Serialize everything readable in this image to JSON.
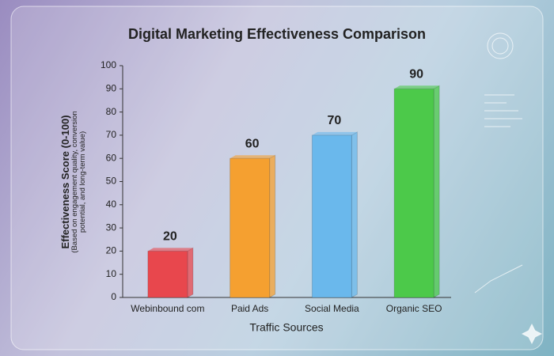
{
  "chart_data": {
    "type": "bar",
    "title": "Digital Marketing Effectiveness Comparison",
    "y_label": "Effectiveness Score (0-100)",
    "y_sublabel": "(Based on engagement quality, conversion potential, and long-term value)",
    "x_label": "Traffic Sources",
    "categories": [
      "Webinbound com",
      "Paid Ads",
      "Social Media",
      "Organic SEO"
    ],
    "values": [
      20,
      60,
      70,
      90
    ],
    "colors": [
      "#e8474d",
      "#f5a030",
      "#6ab8ec",
      "#4cc94a"
    ],
    "ylim": [
      0,
      100
    ],
    "yticks": [
      0,
      10,
      20,
      30,
      40,
      50,
      60,
      70,
      80,
      90,
      100
    ],
    "grid": false
  }
}
